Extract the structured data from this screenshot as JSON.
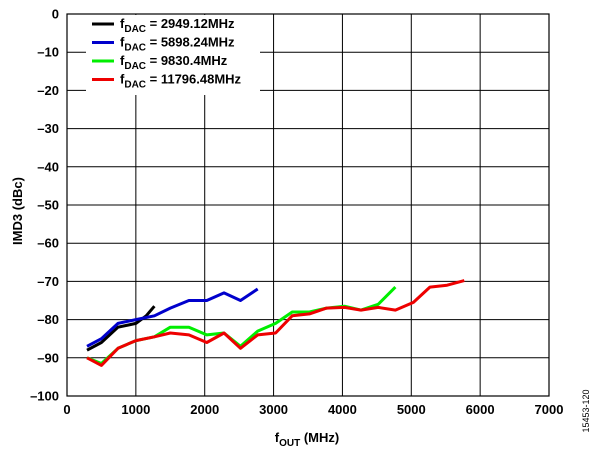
{
  "chart_data": {
    "type": "line",
    "xlabel": "f",
    "xlabel_sub": "OUT",
    "xlabel_unit": " (MHz)",
    "ylabel": "IMD3 (dBc)",
    "xlim": [
      0,
      7000
    ],
    "ylim": [
      -100,
      0
    ],
    "x_ticks": [
      "0",
      "1000",
      "2000",
      "3000",
      "4000",
      "5000",
      "6000",
      "7000"
    ],
    "y_ticks": [
      "0",
      "–10",
      "–20",
      "–30",
      "–40",
      "–50",
      "–60",
      "–70",
      "–80",
      "–90",
      "–100"
    ],
    "grid": true,
    "legend_position": "top-left",
    "figure_id": "15453-120",
    "series": [
      {
        "name_main": "f",
        "name_sub": "DAC",
        "name_value": " = 2949.12MHz",
        "color": "#000000",
        "points": [
          [
            290,
            -88
          ],
          [
            500,
            -86
          ],
          [
            740,
            -82
          ],
          [
            1000,
            -81
          ],
          [
            1150,
            -79
          ],
          [
            1270,
            -76.5
          ]
        ]
      },
      {
        "name_main": "f",
        "name_sub": "DAC",
        "name_value": " = 5898.24MHz",
        "color": "#0000cc",
        "points": [
          [
            290,
            -87
          ],
          [
            500,
            -85
          ],
          [
            740,
            -81
          ],
          [
            1000,
            -80
          ],
          [
            1270,
            -79
          ],
          [
            1500,
            -77
          ],
          [
            1770,
            -75
          ],
          [
            2030,
            -75
          ],
          [
            2280,
            -73
          ],
          [
            2520,
            -75
          ],
          [
            2770,
            -72
          ]
        ]
      },
      {
        "name_main": "f",
        "name_sub": "DAC",
        "name_value": " = 9830.4MHz",
        "color": "#00ee00",
        "points": [
          [
            290,
            -90
          ],
          [
            500,
            -91.5
          ],
          [
            740,
            -87.5
          ],
          [
            1000,
            -85.5
          ],
          [
            1270,
            -84.5
          ],
          [
            1500,
            -82
          ],
          [
            1770,
            -82
          ],
          [
            2030,
            -84
          ],
          [
            2280,
            -83.5
          ],
          [
            2520,
            -87
          ],
          [
            2770,
            -83
          ],
          [
            3030,
            -81
          ],
          [
            3270,
            -78
          ],
          [
            3520,
            -78
          ],
          [
            3770,
            -77
          ],
          [
            4030,
            -76.5
          ],
          [
            4270,
            -77.5
          ],
          [
            4520,
            -76
          ],
          [
            4770,
            -71.5
          ]
        ]
      },
      {
        "name_main": "f",
        "name_sub": "DAC",
        "name_value": " = 11796.48MHz",
        "color": "#ee0000",
        "points": [
          [
            290,
            -90
          ],
          [
            500,
            -92
          ],
          [
            740,
            -87.5
          ],
          [
            1000,
            -85.5
          ],
          [
            1270,
            -84.5
          ],
          [
            1500,
            -83.5
          ],
          [
            1770,
            -84
          ],
          [
            2030,
            -86
          ],
          [
            2280,
            -83.5
          ],
          [
            2520,
            -87.5
          ],
          [
            2770,
            -84
          ],
          [
            3030,
            -83.5
          ],
          [
            3270,
            -79
          ],
          [
            3520,
            -78.5
          ],
          [
            3770,
            -77
          ],
          [
            4030,
            -76.8
          ],
          [
            4270,
            -77.5
          ],
          [
            4520,
            -76.8
          ],
          [
            4770,
            -77.5
          ],
          [
            5030,
            -75.5
          ],
          [
            5270,
            -71.5
          ],
          [
            5520,
            -71
          ],
          [
            5770,
            -69.8
          ]
        ]
      }
    ]
  }
}
